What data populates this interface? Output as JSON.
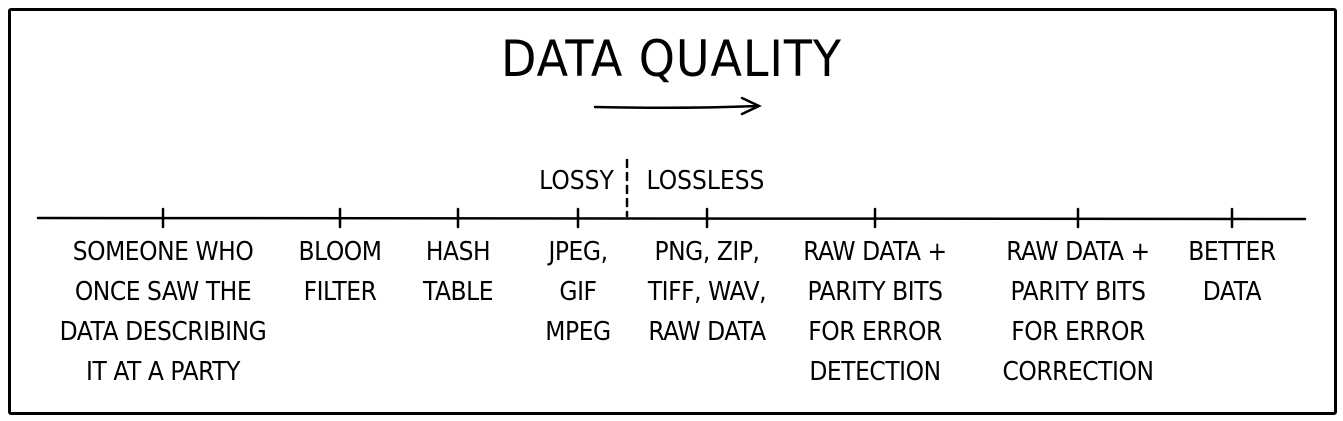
{
  "title": "DATA QUALITY",
  "arrow_direction": "right",
  "divider": {
    "left_label": "LOSSY",
    "right_label": "LOSSLESS"
  },
  "items": [
    {
      "lines": [
        "SOMEONE WHO",
        "ONCE SAW THE",
        "DATA DESCRIBING",
        "IT AT A PARTY"
      ]
    },
    {
      "lines": [
        "BLOOM",
        "FILTER"
      ]
    },
    {
      "lines": [
        "HASH",
        "TABLE"
      ]
    },
    {
      "lines": [
        "JPEG,",
        "GIF",
        "MPEG"
      ]
    },
    {
      "lines": [
        "PNG, ZIP,",
        "TIFF, WAV,",
        "RAW DATA"
      ]
    },
    {
      "lines": [
        "RAW DATA +",
        "PARITY BITS",
        "FOR ERROR",
        "DETECTION"
      ]
    },
    {
      "lines": [
        "RAW DATA +",
        "PARITY BITS",
        "FOR ERROR",
        "CORRECTION"
      ]
    },
    {
      "lines": [
        "BETTER",
        "DATA"
      ]
    }
  ]
}
